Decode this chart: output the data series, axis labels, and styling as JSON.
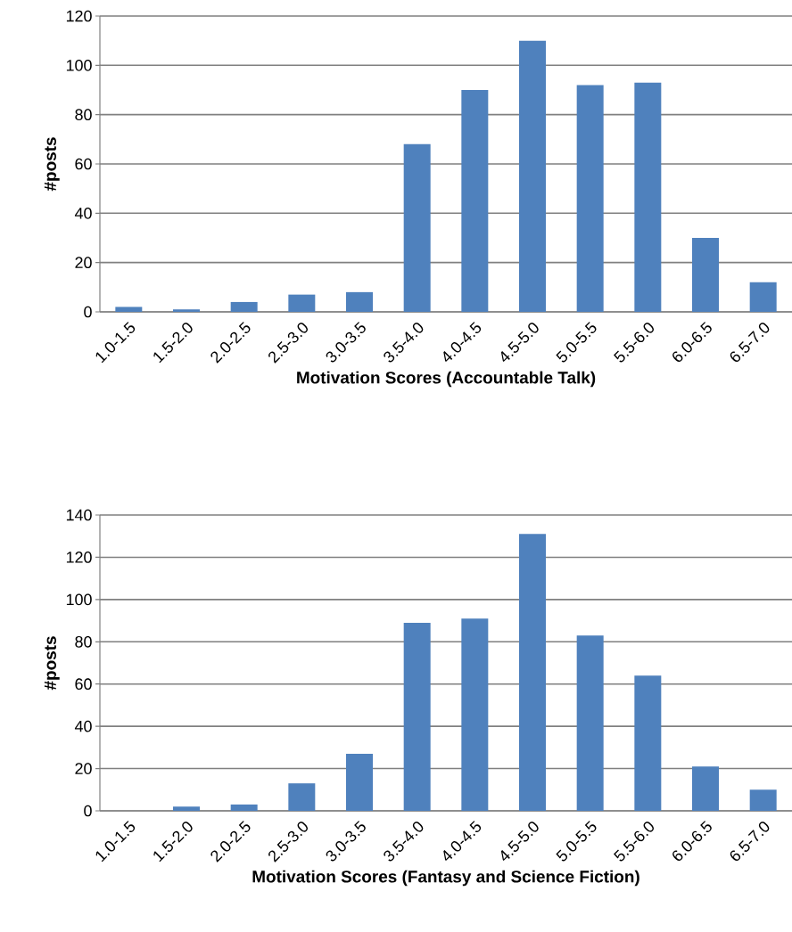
{
  "chart_data": [
    {
      "type": "bar",
      "categories": [
        "1.0-1.5",
        "1.5-2.0",
        "2.0-2.5",
        "2.5-3.0",
        "3.0-3.5",
        "3.5-4.0",
        "4.0-4.5",
        "4.5-5.0",
        "5.0-5.5",
        "5.5-6.0",
        "6.0-6.5",
        "6.5-7.0"
      ],
      "values": [
        2,
        1,
        4,
        7,
        8,
        68,
        90,
        110,
        92,
        93,
        30,
        12
      ],
      "color": "#4f81bd",
      "xlabel": "Motivation Scores (Accountable Talk)",
      "ylabel": "#posts",
      "ylim": [
        0,
        120
      ],
      "yticks": [
        0,
        20,
        40,
        60,
        80,
        100,
        120
      ],
      "grid": "y"
    },
    {
      "type": "bar",
      "categories": [
        "1.0-1.5",
        "1.5-2.0",
        "2.0-2.5",
        "2.5-3.0",
        "3.0-3.5",
        "3.5-4.0",
        "4.0-4.5",
        "4.5-5.0",
        "5.0-5.5",
        "5.5-6.0",
        "6.0-6.5",
        "6.5-7.0"
      ],
      "values": [
        0,
        2,
        3,
        13,
        27,
        89,
        91,
        131,
        83,
        64,
        21,
        10
      ],
      "color": "#4f81bd",
      "xlabel": "Motivation Scores (Fantasy and Science Fiction)",
      "ylabel": "#posts",
      "ylim": [
        0,
        140
      ],
      "yticks": [
        0,
        20,
        40,
        60,
        80,
        100,
        120,
        140
      ],
      "grid": "y"
    }
  ]
}
